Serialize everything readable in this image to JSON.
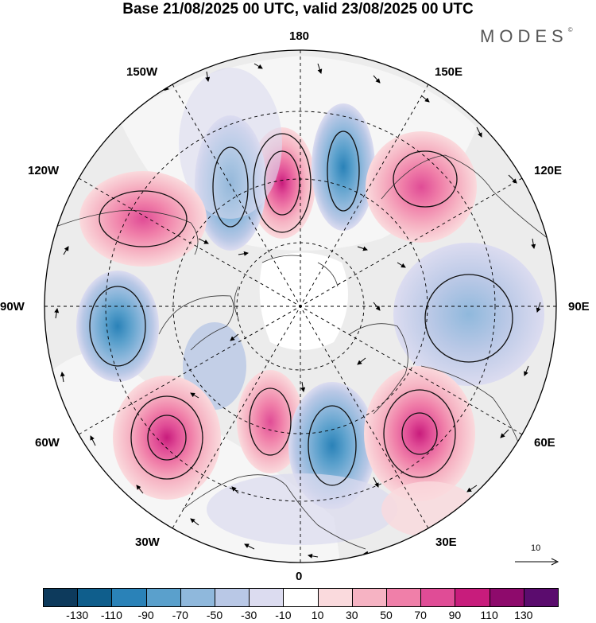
{
  "header": {
    "title": "Base 21/08/2025 00 UTC, valid 23/08/2025 00 UTC",
    "brand": "MODES",
    "brand_mark": "©"
  },
  "map": {
    "projection": "north-polar-stereographic",
    "longitude_labels": {
      "top": "180",
      "top_left": "150W",
      "top_right": "150E",
      "upper_left": "120W",
      "upper_right": "120E",
      "left": "90W",
      "right": "90E",
      "lower_left": "60W",
      "lower_right": "60E",
      "bottom_left": "30W",
      "bottom_right": "30E",
      "bottom": "0"
    },
    "reference_vector_label": "10",
    "anomaly_centers": [
      {
        "sign": "positive",
        "longitude": "approx 170W",
        "max_class": "70"
      },
      {
        "sign": "negative",
        "longitude": "approx 155W",
        "max_class": "-70"
      },
      {
        "sign": "positive",
        "longitude": "approx 125W",
        "max_class": "70"
      },
      {
        "sign": "negative",
        "longitude": "approx 170E",
        "max_class": "-70"
      },
      {
        "sign": "positive",
        "longitude": "approx 140E",
        "max_class": "70"
      },
      {
        "sign": "negative",
        "longitude": "approx 95W",
        "max_class": "-70"
      },
      {
        "sign": "negative",
        "longitude": "approx 90E",
        "max_class": "-50"
      },
      {
        "sign": "positive",
        "longitude": "approx 60W",
        "max_class": "110"
      },
      {
        "sign": "positive",
        "longitude": "approx 20W",
        "max_class": "90"
      },
      {
        "sign": "negative",
        "longitude": "approx 15E",
        "max_class": "-70"
      },
      {
        "sign": "positive",
        "longitude": "approx 50E",
        "max_class": "110"
      }
    ]
  },
  "colorbar": {
    "ticks": [
      "-130",
      "-110",
      "-90",
      "-70",
      "-50",
      "-30",
      "-10",
      "10",
      "30",
      "50",
      "70",
      "90",
      "110",
      "130"
    ],
    "colors": [
      "#0d3a5c",
      "#0f5e8c",
      "#2a82b8",
      "#5aa0cc",
      "#8fb8dc",
      "#b9c8e6",
      "#dcdcf0",
      "#ffffff",
      "#fadadd",
      "#f6b3c3",
      "#f07fa9",
      "#e04c96",
      "#c81c7c",
      "#8e0a6c",
      "#5b0c6e"
    ]
  }
}
